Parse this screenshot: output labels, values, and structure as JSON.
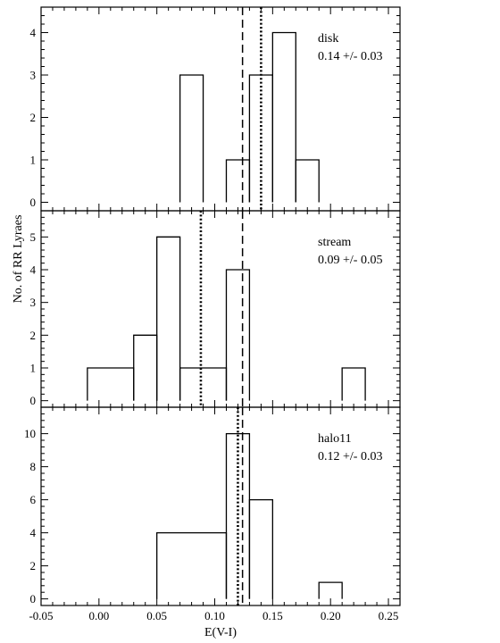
{
  "chart_data": {
    "type": "histogram",
    "xlabel": "E(V-I)",
    "ylabel": "No. of RR Lyraes",
    "xlim": [
      -0.05,
      0.26
    ],
    "xticks": [
      -0.05,
      0.0,
      0.05,
      0.1,
      0.15,
      0.2,
      0.25
    ],
    "xtick_labels": [
      "-0.05",
      "0.00",
      "0.05",
      "0.10",
      "0.15",
      "0.20",
      "0.25"
    ],
    "bin_width": 0.02,
    "panels": [
      {
        "name": "disk",
        "label": "disk",
        "stat": "0.14 +/- 0.03",
        "ylim": [
          -0.2,
          4.6
        ],
        "yticks": [
          0,
          1,
          2,
          3,
          4
        ],
        "bins": [
          {
            "x0": 0.07,
            "x1": 0.09,
            "count": 3
          },
          {
            "x0": 0.11,
            "x1": 0.13,
            "count": 1
          },
          {
            "x0": 0.13,
            "x1": 0.15,
            "count": 3
          },
          {
            "x0": 0.15,
            "x1": 0.17,
            "count": 4
          },
          {
            "x0": 0.17,
            "x1": 0.19,
            "count": 1
          }
        ],
        "dashed_line": 0.124,
        "dotted_line": 0.14
      },
      {
        "name": "stream",
        "label": "stream",
        "stat": "0.09 +/- 0.05",
        "ylim": [
          -0.2,
          5.8
        ],
        "yticks": [
          0,
          1,
          2,
          3,
          4,
          5
        ],
        "bins": [
          {
            "x0": -0.01,
            "x1": 0.03,
            "count": 1
          },
          {
            "x0": 0.03,
            "x1": 0.05,
            "count": 2
          },
          {
            "x0": 0.05,
            "x1": 0.07,
            "count": 5
          },
          {
            "x0": 0.07,
            "x1": 0.11,
            "count": 1
          },
          {
            "x0": 0.11,
            "x1": 0.13,
            "count": 4
          },
          {
            "x0": 0.21,
            "x1": 0.23,
            "count": 1
          }
        ],
        "dashed_line": 0.124,
        "dotted_line": 0.088
      },
      {
        "name": "halo11",
        "label": "halo11",
        "stat": "0.12 +/- 0.03",
        "ylim": [
          -0.4,
          11.6
        ],
        "yticks": [
          0,
          2,
          4,
          6,
          8,
          10
        ],
        "bins": [
          {
            "x0": 0.05,
            "x1": 0.11,
            "count": 4
          },
          {
            "x0": 0.11,
            "x1": 0.13,
            "count": 10
          },
          {
            "x0": 0.13,
            "x1": 0.15,
            "count": 6
          },
          {
            "x0": 0.19,
            "x1": 0.21,
            "count": 1
          }
        ],
        "dashed_line": 0.124,
        "dotted_line": 0.12
      }
    ]
  }
}
